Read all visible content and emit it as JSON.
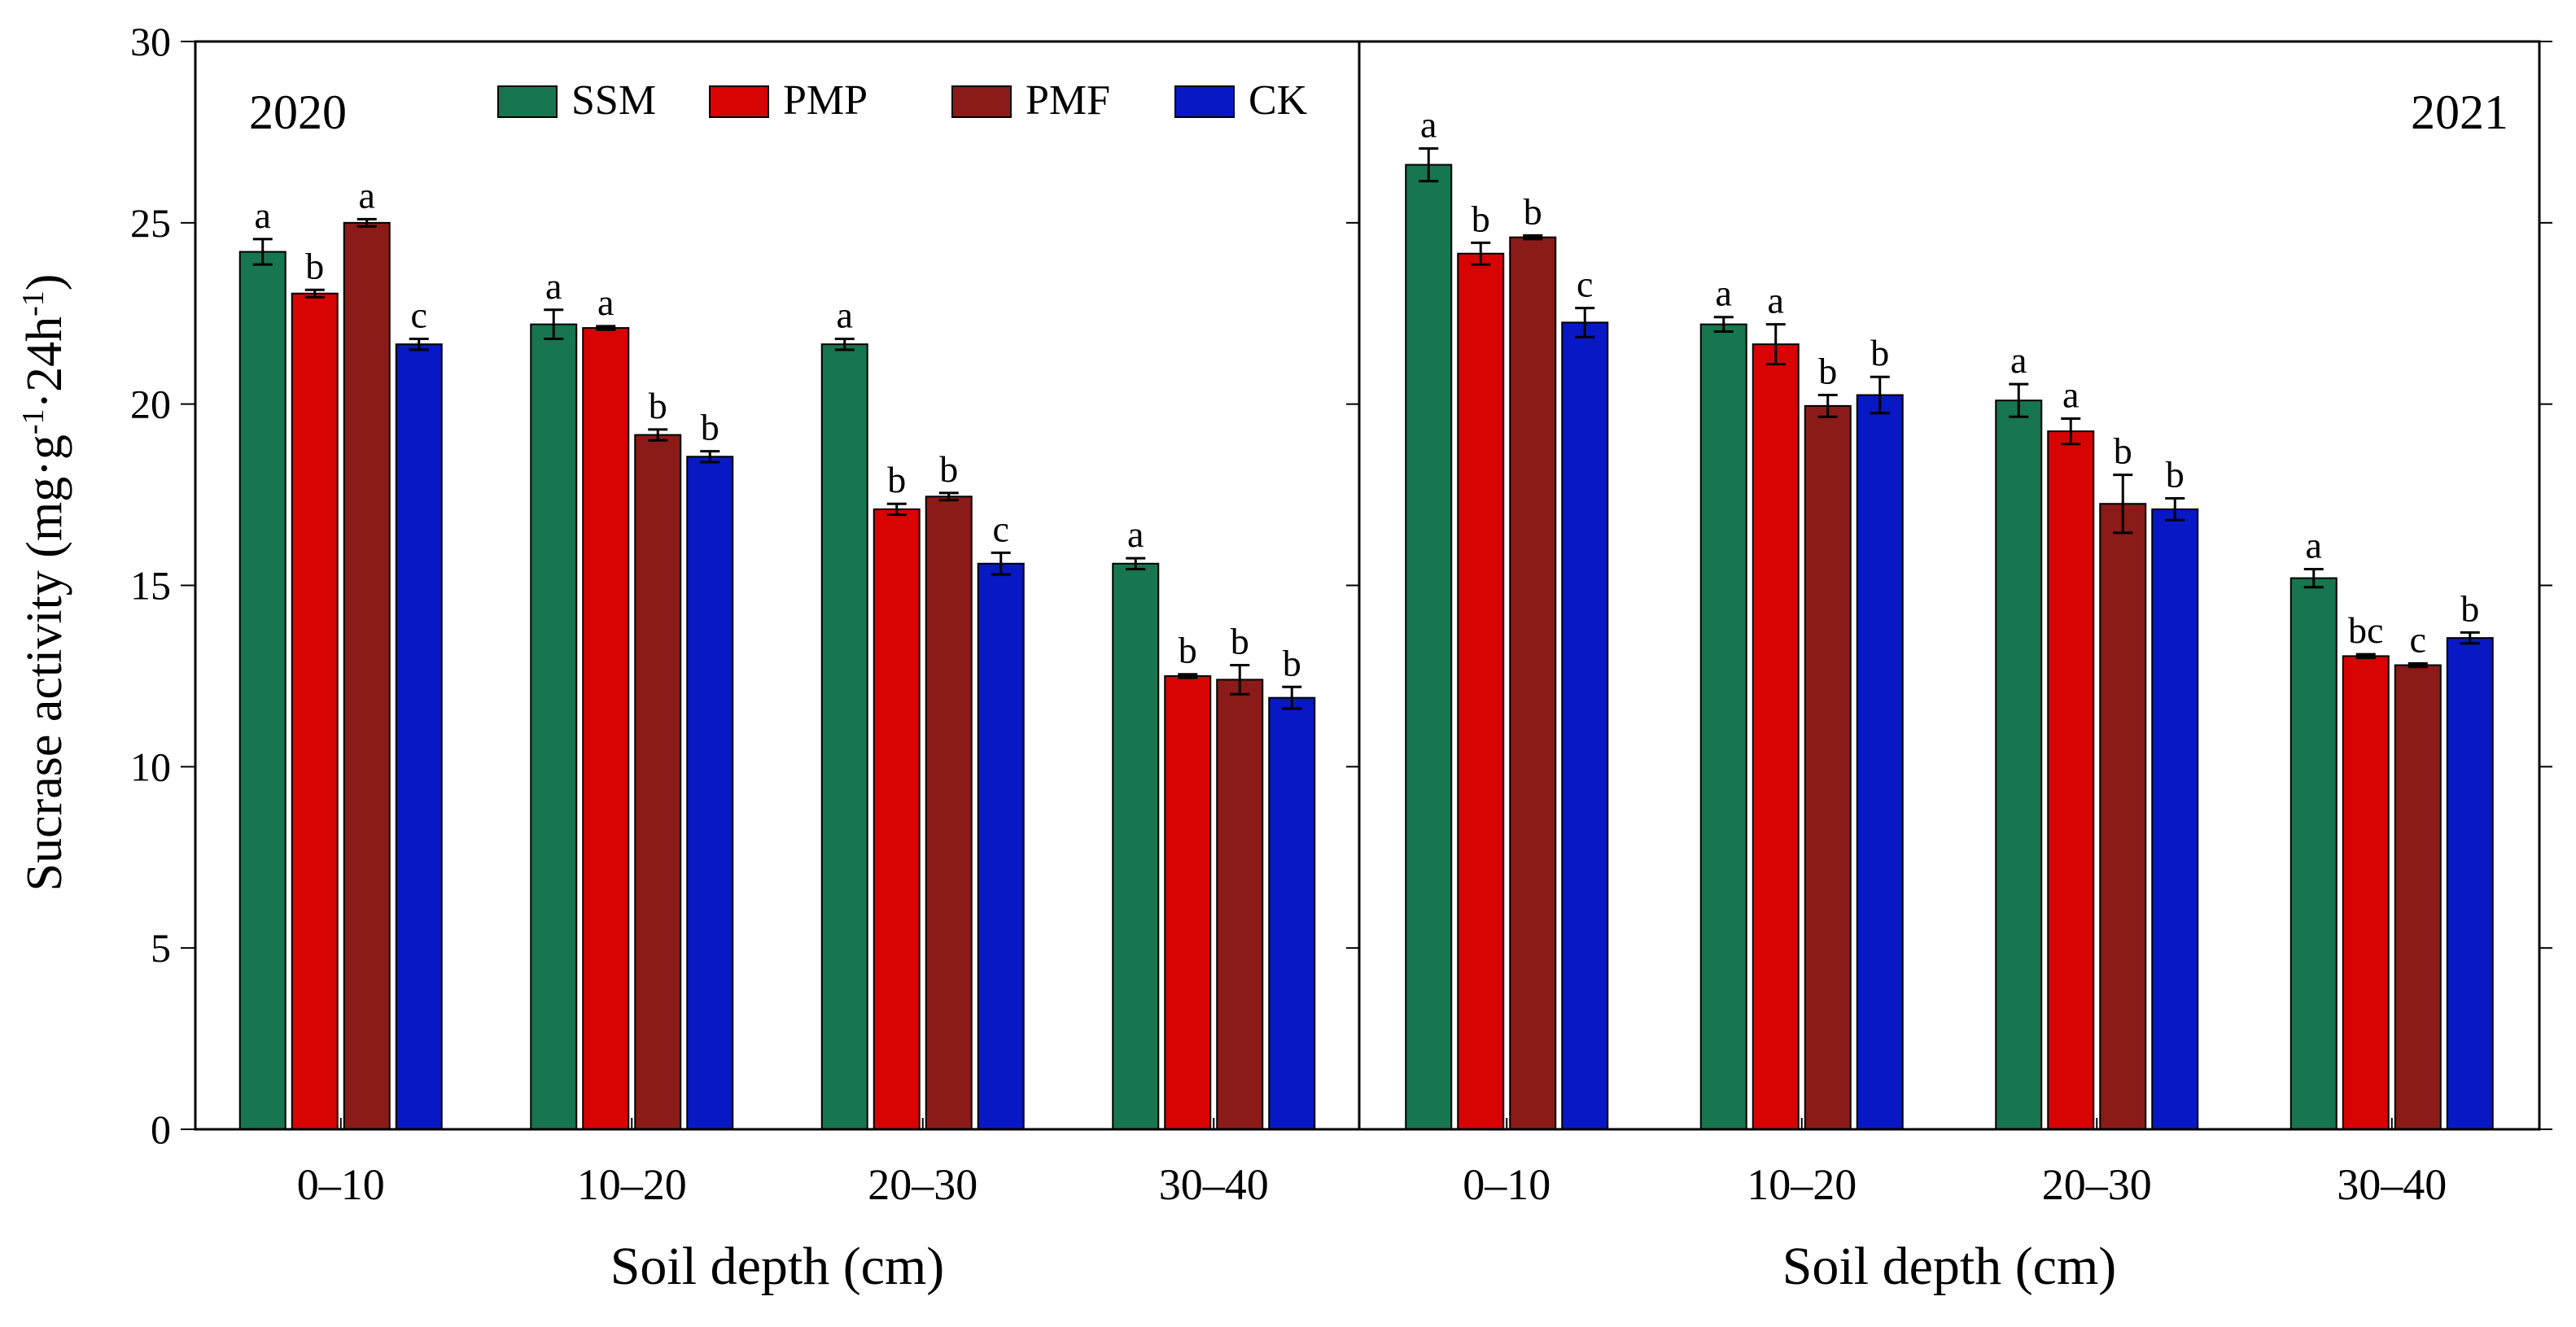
{
  "figure": {
    "ylabel_main": "Sucrase activity (mg·g",
    "ylabel_sup1": "-1",
    "ylabel_mid": "·24h",
    "ylabel_sup2": "-1",
    "ylabel_end": ")"
  },
  "chart_data": {
    "type": "bar",
    "ylabel": "Sucrase activity (mg·g-1·24h-1)",
    "ylim": [
      0,
      30
    ],
    "yticks": [
      0,
      5,
      10,
      15,
      20,
      25,
      30
    ],
    "categories": [
      "0–10",
      "10–20",
      "20–30",
      "30–40"
    ],
    "legend": {
      "position": "top",
      "entries": [
        {
          "name": "SSM",
          "color": "#17754f"
        },
        {
          "name": "PMP",
          "color": "#d80303"
        },
        {
          "name": "PMF",
          "color": "#8a1b18"
        },
        {
          "name": "CK",
          "color": "#0718c4"
        }
      ]
    },
    "panels": [
      {
        "title": "2020",
        "xlabel": "Soil depth (cm)",
        "series": [
          {
            "name": "SSM",
            "values": [
              24.2,
              22.2,
              21.65,
              15.6
            ],
            "errors": [
              0.35,
              0.4,
              0.15,
              0.15
            ],
            "labels": [
              "a",
              "a",
              "a",
              "a"
            ]
          },
          {
            "name": "PMP",
            "values": [
              23.05,
              22.1,
              17.1,
              12.5
            ],
            "errors": [
              0.1,
              0.05,
              0.15,
              0.05
            ],
            "labels": [
              "b",
              "a",
              "b",
              "b"
            ]
          },
          {
            "name": "PMF",
            "values": [
              25.0,
              19.15,
              17.45,
              12.4
            ],
            "errors": [
              0.1,
              0.15,
              0.1,
              0.4
            ],
            "labels": [
              "a",
              "b",
              "b",
              "b"
            ]
          },
          {
            "name": "CK",
            "values": [
              21.65,
              18.55,
              15.6,
              11.9
            ],
            "errors": [
              0.15,
              0.15,
              0.3,
              0.3
            ],
            "labels": [
              "c",
              "b",
              "c",
              "b"
            ]
          }
        ]
      },
      {
        "title": "2021",
        "xlabel": "Soil depth (cm)",
        "series": [
          {
            "name": "SSM",
            "values": [
              26.6,
              22.2,
              20.1,
              15.2
            ],
            "errors": [
              0.45,
              0.2,
              0.45,
              0.25
            ],
            "labels": [
              "a",
              "a",
              "a",
              "a"
            ]
          },
          {
            "name": "PMP",
            "values": [
              24.15,
              21.65,
              19.25,
              13.05
            ],
            "errors": [
              0.3,
              0.55,
              0.35,
              0.05
            ],
            "labels": [
              "b",
              "a",
              "a",
              "bc"
            ]
          },
          {
            "name": "PMF",
            "values": [
              24.6,
              19.95,
              17.25,
              12.8
            ],
            "errors": [
              0.05,
              0.3,
              0.8,
              0.05
            ],
            "labels": [
              "b",
              "b",
              "b",
              "c"
            ]
          },
          {
            "name": "CK",
            "values": [
              22.25,
              20.25,
              17.1,
              13.55
            ],
            "errors": [
              0.4,
              0.5,
              0.3,
              0.15
            ],
            "labels": [
              "c",
              "b",
              "b",
              "b"
            ]
          }
        ]
      }
    ]
  }
}
